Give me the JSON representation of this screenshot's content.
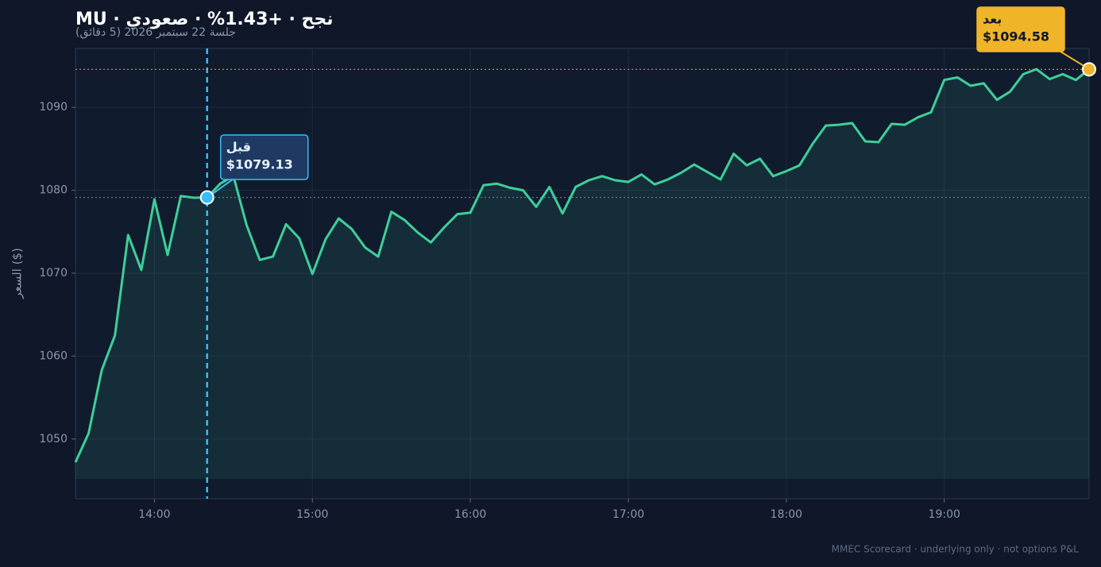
{
  "chart_data": {
    "type": "line",
    "title": "MU · نجح · +1.43% · صعودي",
    "subtitle": "جلسة 22 سبتمبر 2026 (5 دقائق)",
    "y_label": "السعر ($)",
    "footer": "MMEC Scorecard · underlying only · not options P&L",
    "x": [
      "13:30",
      "13:35",
      "13:40",
      "13:45",
      "13:50",
      "13:55",
      "14:00",
      "14:05",
      "14:10",
      "14:15",
      "14:20",
      "14:25",
      "14:30",
      "14:35",
      "14:40",
      "14:45",
      "14:50",
      "14:55",
      "15:00",
      "15:05",
      "15:10",
      "15:15",
      "15:20",
      "15:25",
      "15:30",
      "15:35",
      "15:40",
      "15:45",
      "15:50",
      "15:55",
      "16:00",
      "16:05",
      "16:10",
      "16:15",
      "16:20",
      "16:25",
      "16:30",
      "16:35",
      "16:40",
      "16:45",
      "16:50",
      "16:55",
      "17:00",
      "17:05",
      "17:10",
      "17:15",
      "17:20",
      "17:25",
      "17:30",
      "17:35",
      "17:40",
      "17:45",
      "17:50",
      "17:55",
      "18:00",
      "18:05",
      "18:10",
      "18:15",
      "18:20",
      "18:25",
      "18:30",
      "18:35",
      "18:40",
      "18:45",
      "18:50",
      "18:55",
      "19:00",
      "19:05",
      "19:10",
      "19:15",
      "19:20",
      "19:25",
      "19:30",
      "19:35",
      "19:40",
      "19:45",
      "19:50",
      "19:55"
    ],
    "values": [
      1047.2,
      1050.7,
      1058.3,
      1062.5,
      1074.6,
      1070.4,
      1078.9,
      1072.2,
      1079.3,
      1079.1,
      1079.13,
      1080.8,
      1081.7,
      1075.8,
      1071.6,
      1072.0,
      1075.9,
      1074.2,
      1069.9,
      1074.1,
      1076.6,
      1075.3,
      1073.1,
      1072.0,
      1077.4,
      1076.4,
      1074.9,
      1073.7,
      1075.5,
      1077.1,
      1077.3,
      1080.6,
      1080.8,
      1080.3,
      1080.0,
      1078.0,
      1080.4,
      1077.2,
      1080.4,
      1081.2,
      1081.7,
      1081.2,
      1081.0,
      1081.9,
      1080.7,
      1081.3,
      1082.1,
      1083.1,
      1082.2,
      1081.3,
      1084.4,
      1083.0,
      1083.8,
      1081.7,
      1082.3,
      1083.0,
      1085.6,
      1087.8,
      1087.9,
      1088.1,
      1085.9,
      1085.8,
      1088.0,
      1087.9,
      1088.8,
      1089.4,
      1093.3,
      1093.6,
      1092.6,
      1092.9,
      1090.9,
      1091.9,
      1094.0,
      1094.6,
      1093.4,
      1094.0,
      1093.3,
      1094.58
    ],
    "color": "#3ecf9a",
    "xlim": [
      "13:30",
      "19:55"
    ],
    "xticks": [
      "14:00",
      "15:00",
      "16:00",
      "17:00",
      "18:00",
      "19:00"
    ],
    "ylim": [
      1042.8,
      1097.1
    ],
    "yticks": [
      1050,
      1060,
      1070,
      1080,
      1090
    ],
    "grid": true,
    "annotations": [
      {
        "label": "قبل",
        "value_label": "$1079.13",
        "value": 1079.13,
        "x": "14:20",
        "color": "#38bdf8"
      },
      {
        "label": "بعد",
        "value_label": "$1094.58",
        "value": 1094.58,
        "x": "19:55",
        "color": "#f0b429"
      }
    ]
  }
}
